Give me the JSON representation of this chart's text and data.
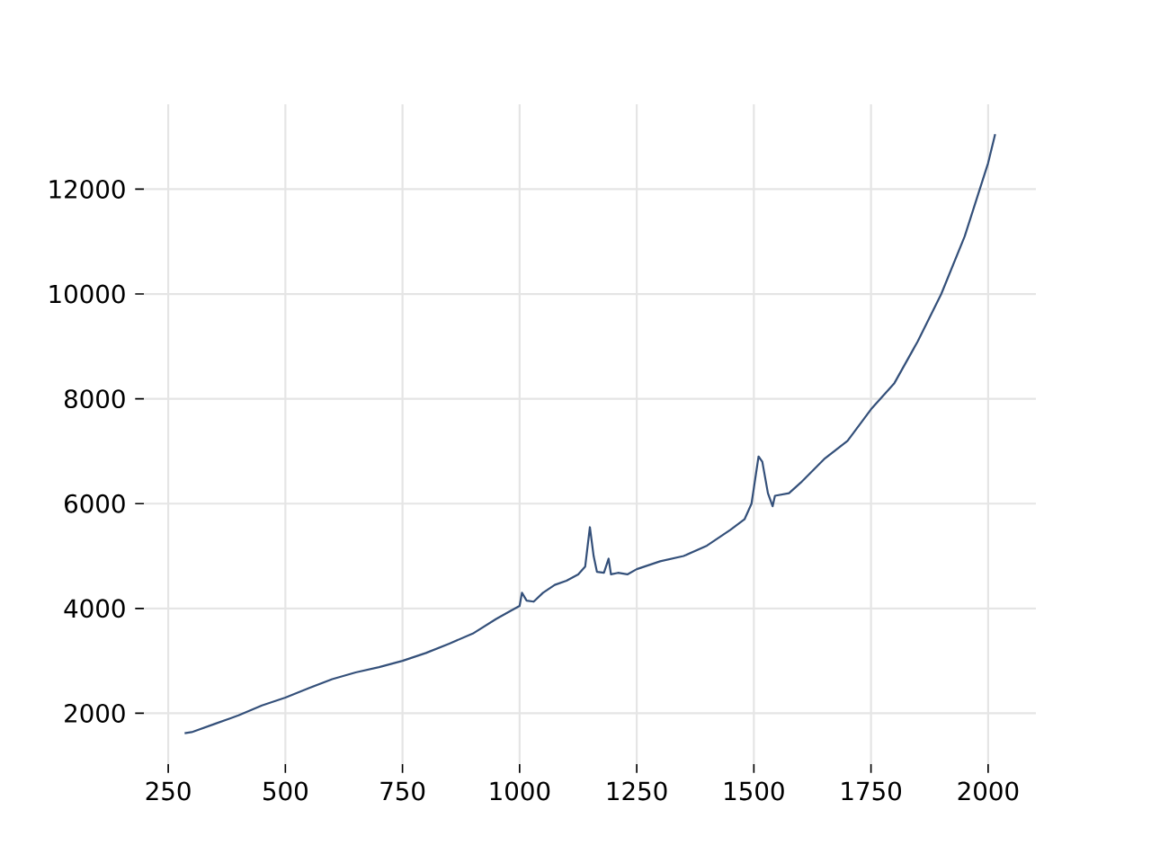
{
  "chart_data": {
    "type": "line",
    "color": "#34507a",
    "grid": true,
    "xlim": [
      198,
      2102
    ],
    "ylim": [
      1030,
      13620
    ],
    "xticks": [
      250,
      500,
      750,
      1000,
      1250,
      1500,
      1750,
      2000
    ],
    "yticks": [
      2000,
      4000,
      6000,
      8000,
      10000,
      12000
    ],
    "x": [
      285,
      300,
      350,
      400,
      450,
      500,
      550,
      600,
      650,
      700,
      750,
      800,
      850,
      900,
      950,
      980,
      1000,
      1005,
      1015,
      1030,
      1050,
      1075,
      1100,
      1125,
      1140,
      1150,
      1158,
      1165,
      1180,
      1190,
      1195,
      1210,
      1230,
      1250,
      1300,
      1350,
      1400,
      1450,
      1480,
      1495,
      1510,
      1518,
      1530,
      1540,
      1545,
      1575,
      1600,
      1650,
      1700,
      1750,
      1800,
      1850,
      1900,
      1950,
      1975,
      2000,
      2015
    ],
    "values": [
      1620,
      1640,
      1800,
      1960,
      2150,
      2300,
      2480,
      2650,
      2780,
      2880,
      3000,
      3150,
      3330,
      3520,
      3800,
      3950,
      4050,
      4300,
      4150,
      4130,
      4300,
      4450,
      4530,
      4650,
      4800,
      5550,
      5000,
      4700,
      4680,
      4950,
      4650,
      4680,
      4650,
      4750,
      4900,
      5000,
      5200,
      5500,
      5700,
      6000,
      6900,
      6800,
      6200,
      5950,
      6150,
      6200,
      6400,
      6850,
      7200,
      7800,
      8300,
      9100,
      10000,
      11100,
      11800,
      12500,
      13050
    ]
  }
}
